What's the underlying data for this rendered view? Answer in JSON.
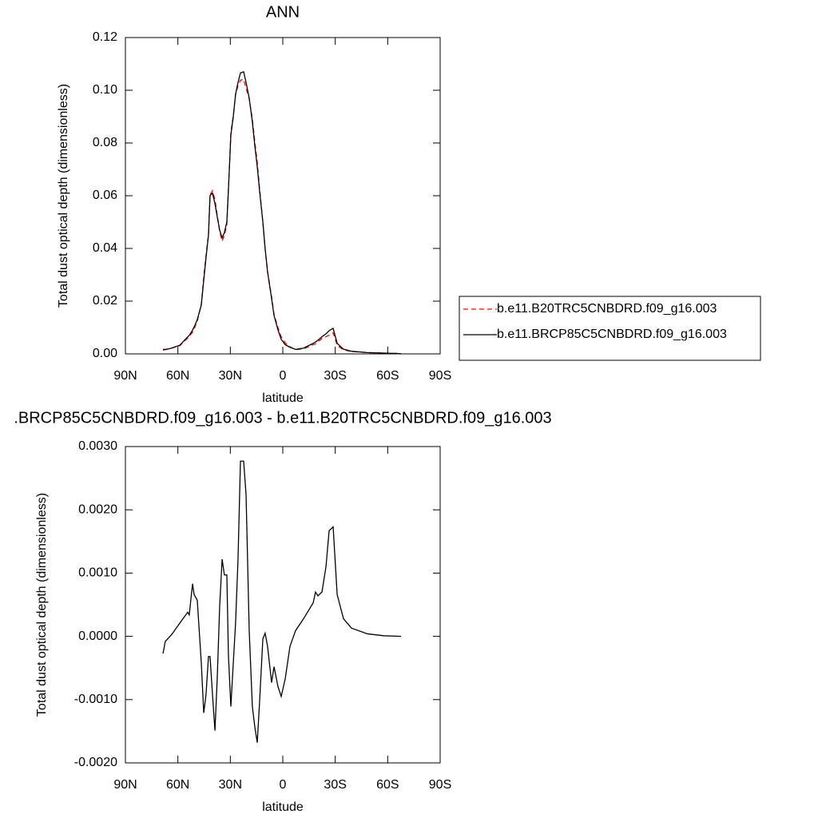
{
  "chart_data": [
    {
      "type": "line",
      "title": "ANN",
      "x_label": "latitude",
      "y_label": "Total dust optical depth (dimensionless)",
      "x": [
        68.5,
        67.2,
        63.5,
        58.9,
        54.4,
        53.5,
        51.6,
        50.7,
        48.9,
        46.6,
        45.2,
        43.9,
        42.5,
        41.6,
        40.2,
        38.8,
        37.5,
        36.1,
        34.7,
        33.4,
        32.0,
        31.1,
        29.7,
        28.3,
        27.0,
        25.6,
        24.2,
        22.4,
        21.0,
        19.2,
        17.4,
        16.0,
        14.6,
        13.3,
        11.4,
        10.1,
        8.7,
        6.4,
        5.0,
        2.7,
        0.9,
        -1.4,
        -4.1,
        -7.3,
        -11.9,
        -17.4,
        -18.7,
        -20.1,
        -22.4,
        -24.7,
        -26.5,
        -28.8,
        -31.1,
        -34.7,
        -39.3,
        -48.4,
        -57.6,
        -67.6
      ],
      "series": [
        {
          "name": "b.e11.B20TRC5CNBDRD.f09_g16.003",
          "color": "#ff0000",
          "dash": "dashed",
          "values": [
            0.0018,
            0.0017,
            0.0022,
            0.0031,
            0.006,
            0.0067,
            0.0082,
            0.0095,
            0.0124,
            0.0189,
            0.0292,
            0.0374,
            0.0453,
            0.0603,
            0.0619,
            0.0585,
            0.0527,
            0.0465,
            0.0428,
            0.045,
            0.049,
            0.0623,
            0.0841,
            0.0904,
            0.0983,
            0.1018,
            0.1038,
            0.1042,
            0.1008,
            0.0969,
            0.0891,
            0.0804,
            0.0727,
            0.0631,
            0.05,
            0.04,
            0.0312,
            0.0217,
            0.015,
            0.0098,
            0.0065,
            0.0042,
            0.0027,
            0.0016,
            0.0019,
            0.0035,
            0.0038,
            0.0046,
            0.0058,
            0.0065,
            0.0071,
            0.008,
            0.0033,
            0.0015,
            0.0009,
            0.0005,
            0.0003,
            0.0001
          ]
        },
        {
          "name": "b.e11.BRCP85C5CNBDRD.f09_g16.003",
          "color": "#000000",
          "dash": "solid",
          "values": [
            0.0015,
            0.0016,
            0.0022,
            0.0033,
            0.0064,
            0.007,
            0.009,
            0.0102,
            0.013,
            0.0185,
            0.028,
            0.0365,
            0.045,
            0.06,
            0.061,
            0.057,
            0.052,
            0.047,
            0.044,
            0.046,
            0.05,
            0.062,
            0.083,
            0.09,
            0.0985,
            0.103,
            0.1066,
            0.107,
            0.103,
            0.097,
            0.088,
            0.079,
            0.071,
            0.062,
            0.05,
            0.04,
            0.031,
            0.021,
            0.0145,
            0.009,
            0.0055,
            0.0035,
            0.0025,
            0.0017,
            0.0022,
            0.004,
            0.0045,
            0.0052,
            0.0065,
            0.0076,
            0.0088,
            0.0097,
            0.004,
            0.0018,
            0.001,
            0.0005,
            0.0003,
            0.0001
          ]
        }
      ],
      "xlim": [
        90,
        -90
      ],
      "xticks": [
        {
          "value": 90,
          "label": "90N"
        },
        {
          "value": 60,
          "label": "60N"
        },
        {
          "value": 30,
          "label": "30N"
        },
        0,
        {
          "value": -30,
          "label": "30S"
        },
        {
          "value": -60,
          "label": "60S"
        },
        {
          "value": -90,
          "label": "90S"
        }
      ],
      "ylim": [
        0,
        0.12
      ],
      "yticks": [
        {
          "value": 0,
          "label": "0.00"
        },
        {
          "value": 0.02,
          "label": "0.02"
        },
        {
          "value": 0.04,
          "label": "0.04"
        },
        {
          "value": 0.06,
          "label": "0.06"
        },
        {
          "value": 0.08,
          "label": "0.08"
        },
        {
          "value": 0.1,
          "label": "0.10"
        },
        {
          "value": 0.12,
          "label": "0.12"
        }
      ],
      "legend": "right"
    },
    {
      "type": "line",
      "title": ".BRCP85C5CNBDRD.f09_g16.003 - b.e11.B20TRC5CNBDRD.f09_g16.003",
      "x_label": "latitude",
      "y_label": "Total dust optical depth (dimensionless)",
      "x": [
        68.5,
        67.2,
        63.5,
        58.9,
        54.4,
        53.5,
        51.6,
        50.7,
        48.9,
        46.6,
        45.2,
        43.9,
        42.5,
        41.6,
        40.2,
        38.8,
        37.5,
        36.1,
        34.7,
        33.4,
        32.0,
        31.1,
        29.7,
        28.3,
        27.0,
        25.6,
        24.2,
        22.4,
        21.0,
        19.2,
        17.4,
        16.0,
        14.6,
        13.3,
        11.4,
        10.1,
        8.7,
        6.4,
        5.0,
        2.7,
        0.9,
        -1.4,
        -4.1,
        -7.3,
        -11.9,
        -17.4,
        -18.7,
        -20.1,
        -22.4,
        -24.7,
        -26.5,
        -28.8,
        -31.1,
        -34.7,
        -39.3,
        -48.4,
        -57.6,
        -67.6
      ],
      "values": [
        -0.00027,
        -8e-05,
        3e-05,
        0.00021,
        0.00038,
        0.00034,
        0.00083,
        0.00066,
        0.00057,
        -0.00042,
        -0.00121,
        -0.00092,
        -0.00032,
        -0.00032,
        -0.00092,
        -0.00149,
        -0.00067,
        0.00047,
        0.00122,
        0.00097,
        0.00097,
        -0.00029,
        -0.00111,
        -0.00042,
        0.00021,
        0.00122,
        0.00277,
        0.00277,
        0.00224,
        9e-05,
        -0.00111,
        -0.00143,
        -0.00168,
        -0.00105,
        -4e-05,
        5e-05,
        -0.00016,
        -0.00073,
        -0.00048,
        -0.0008,
        -0.00095,
        -0.00067,
        -0.00016,
        9e-05,
        0.00028,
        0.00053,
        0.0007,
        0.00064,
        0.0007,
        0.0011,
        0.00167,
        0.00173,
        0.00066,
        0.00028,
        0.00013,
        4e-05,
        1e-05,
        0.0
      ],
      "color": "#000000",
      "xlim": [
        90,
        -90
      ],
      "xticks": [
        {
          "value": 90,
          "label": "90N"
        },
        {
          "value": 60,
          "label": "60N"
        },
        {
          "value": 30,
          "label": "30N"
        },
        0,
        {
          "value": -30,
          "label": "30S"
        },
        {
          "value": -60,
          "label": "60S"
        },
        {
          "value": -90,
          "label": "90S"
        }
      ],
      "ylim": [
        -0.002,
        0.003
      ],
      "yticks": [
        {
          "value": -0.002,
          "label": "-0.0020"
        },
        {
          "value": -0.001,
          "label": "-0.0010"
        },
        {
          "value": 0,
          "label": "0.0000"
        },
        {
          "value": 0.001,
          "label": "0.0010"
        },
        {
          "value": 0.002,
          "label": "0.0020"
        },
        {
          "value": 0.003,
          "label": "0.0030"
        }
      ]
    }
  ]
}
